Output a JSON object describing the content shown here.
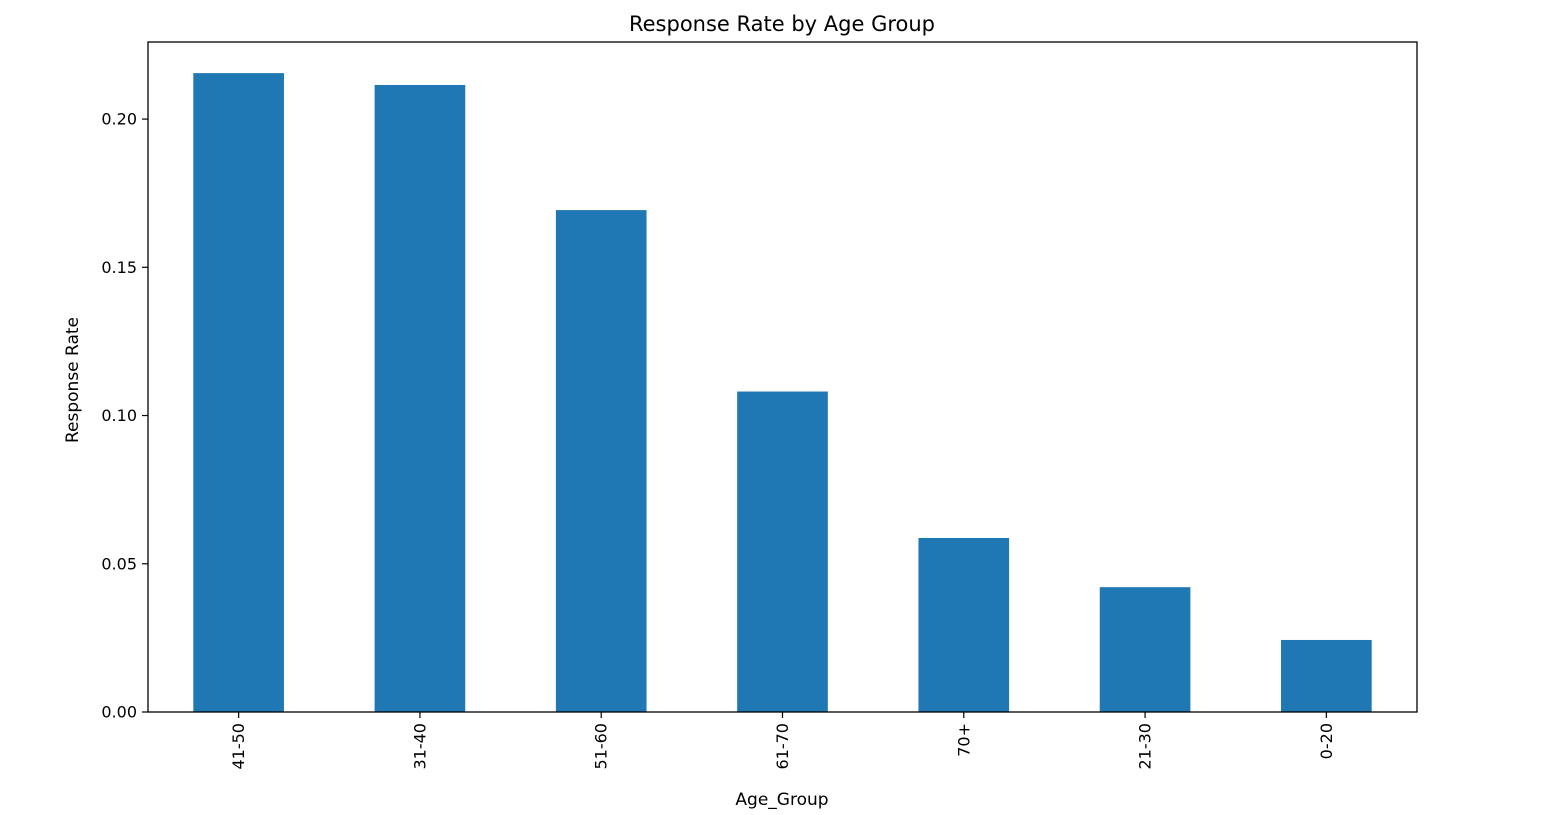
{
  "chart_data": {
    "type": "bar",
    "title": "Response Rate by Age Group",
    "xlabel": "Age_Group",
    "ylabel": "Response Rate",
    "categories": [
      "41-50",
      "31-40",
      "51-60",
      "61-70",
      "70+",
      "21-30",
      "0-20"
    ],
    "values": [
      0.2155,
      0.2115,
      0.1693,
      0.1081,
      0.0587,
      0.0421,
      0.0243
    ],
    "ylim": [
      0,
      0.226
    ],
    "yticks": [
      0.0,
      0.05,
      0.1,
      0.15,
      0.2
    ],
    "ytick_labels": [
      "0.00",
      "0.05",
      "0.10",
      "0.15",
      "0.20"
    ],
    "bar_color": "#1f77b4",
    "grid": false,
    "legend": "none"
  }
}
